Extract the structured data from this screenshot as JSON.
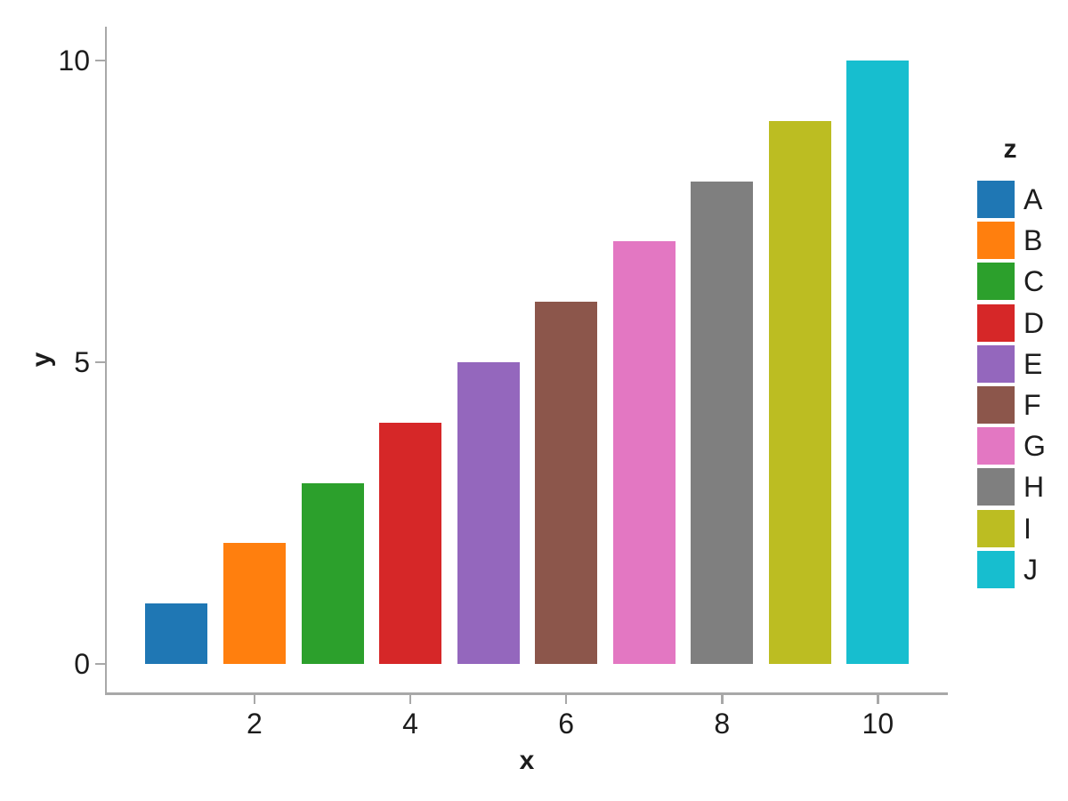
{
  "chart_data": {
    "type": "bar",
    "title": "",
    "xlabel": "x",
    "ylabel": "y",
    "x": [
      1,
      2,
      3,
      4,
      5,
      6,
      7,
      8,
      9,
      10
    ],
    "values": [
      1,
      2,
      3,
      4,
      5,
      6,
      7,
      8,
      9,
      10
    ],
    "z": [
      "A",
      "B",
      "C",
      "D",
      "E",
      "F",
      "G",
      "H",
      "I",
      "J"
    ],
    "colors": [
      "#1f77b4",
      "#ff7f0e",
      "#2ca02c",
      "#d62728",
      "#9467bd",
      "#8c564b",
      "#e377c2",
      "#7f7f7f",
      "#bcbd22",
      "#17becf"
    ],
    "bar_width": 0.8,
    "xticks": [
      2,
      4,
      6,
      8,
      10
    ],
    "yticks": [
      0,
      5,
      10
    ],
    "xlim": [
      0.11,
      10.89
    ],
    "ylim": [
      -0.49,
      10.55
    ],
    "grid": false,
    "axis_color": "#a8a8a8",
    "text_color": "#1c1c1c",
    "legend": {
      "title": "z",
      "position": "right",
      "entries": [
        {
          "label": "A",
          "color": "#1f77b4"
        },
        {
          "label": "B",
          "color": "#ff7f0e"
        },
        {
          "label": "C",
          "color": "#2ca02c"
        },
        {
          "label": "D",
          "color": "#d62728"
        },
        {
          "label": "E",
          "color": "#9467bd"
        },
        {
          "label": "F",
          "color": "#8c564b"
        },
        {
          "label": "G",
          "color": "#e377c2"
        },
        {
          "label": "H",
          "color": "#7f7f7f"
        },
        {
          "label": "I",
          "color": "#bcbd22"
        },
        {
          "label": "J",
          "color": "#17becf"
        }
      ]
    }
  }
}
